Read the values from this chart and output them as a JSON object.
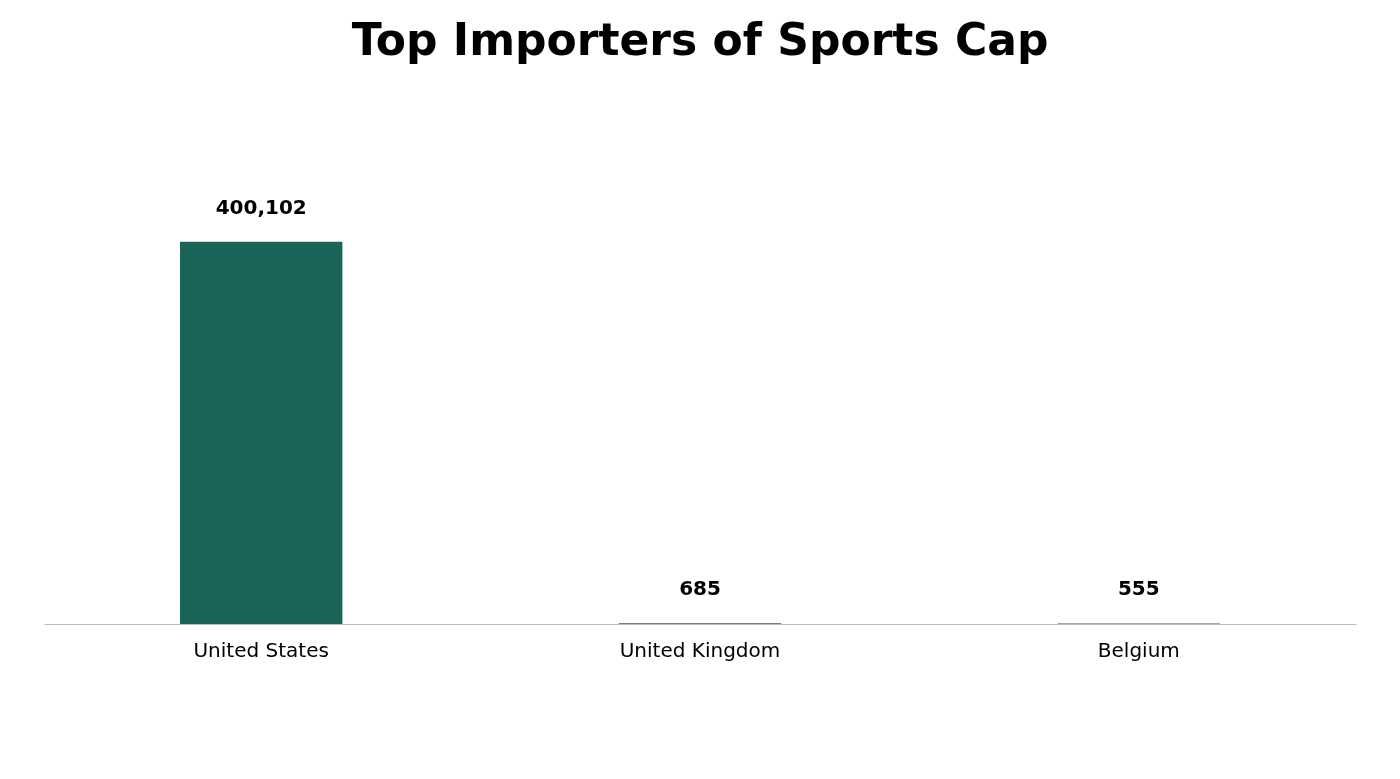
{
  "chart_data": {
    "type": "bar",
    "title": "Top Importers of Sports Cap",
    "categories": [
      "United States",
      "United Kingdom",
      "Belgium"
    ],
    "values": [
      400102,
      685,
      555
    ],
    "color": "#1a6358",
    "value_labels": [
      "400,102",
      "685",
      "555"
    ]
  }
}
